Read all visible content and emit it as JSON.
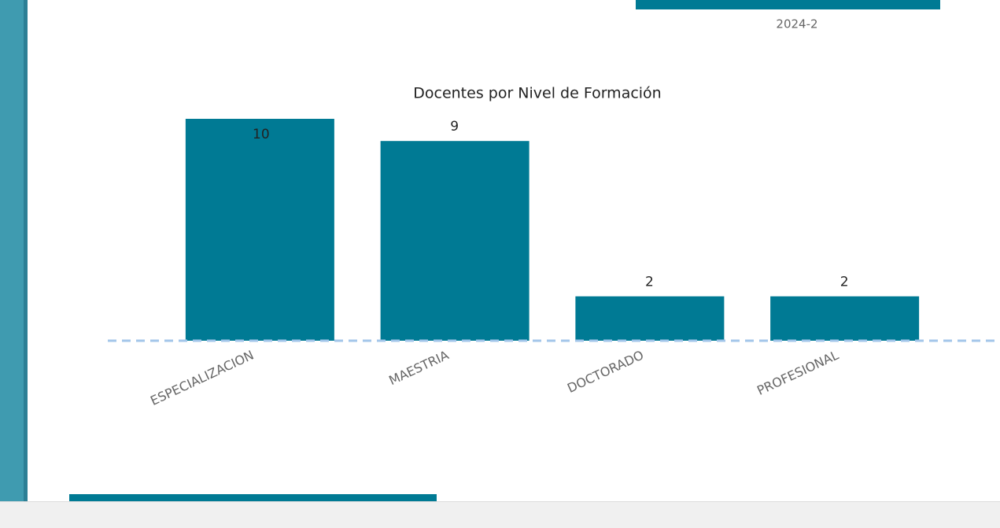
{
  "period": "2024-2",
  "chart_data": {
    "type": "bar",
    "title": "Docentes por Nivel de Formación",
    "categories": [
      "ESPECIALIZACION",
      "MAESTRIA",
      "DOCTORADO",
      "PROFESIONAL"
    ],
    "values": [
      10,
      9,
      2,
      2
    ],
    "color": "#007a94"
  }
}
